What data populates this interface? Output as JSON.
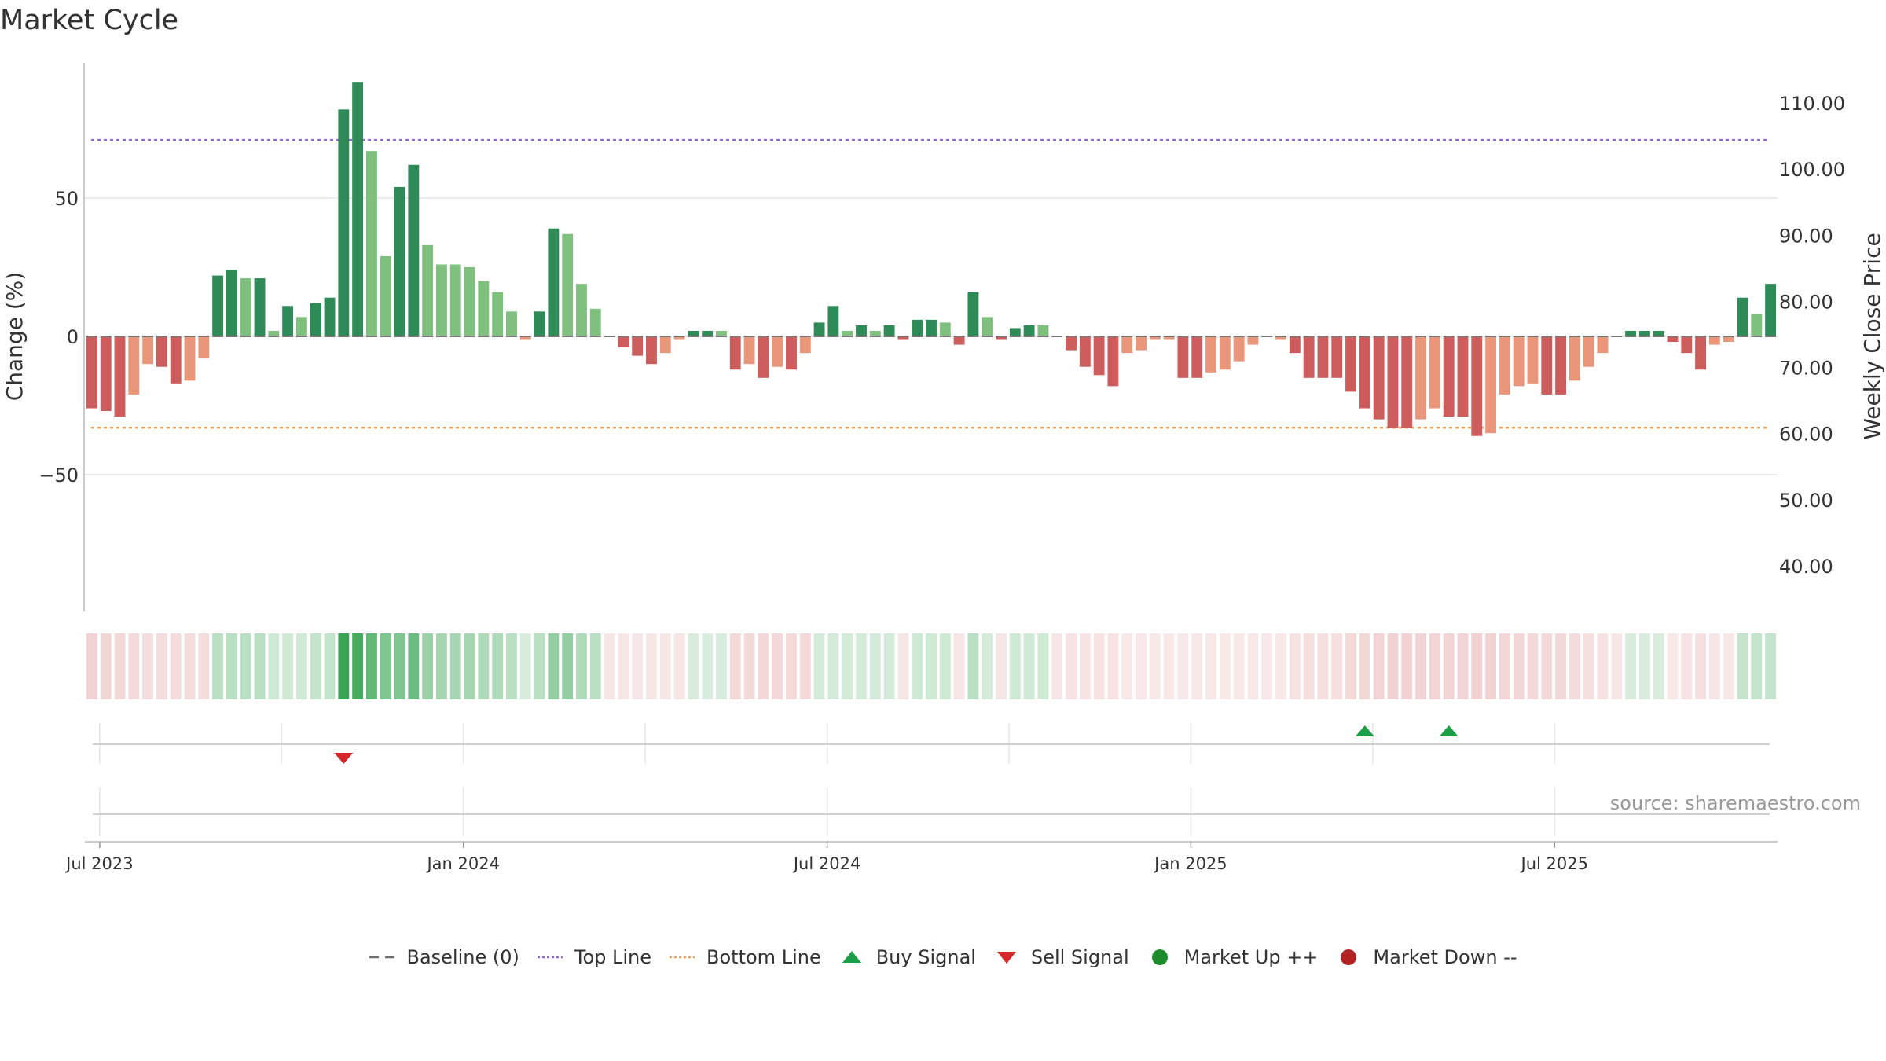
{
  "title": "Market Cycle",
  "source_text": "source: sharemaestro.com",
  "legend": [
    {
      "label": "Baseline (0)",
      "symbol": "dash",
      "color": "#707070"
    },
    {
      "label": "Top Line",
      "symbol": "dot-line",
      "color": "#9467d3"
    },
    {
      "label": "Bottom Line",
      "symbol": "dot-line",
      "color": "#f2a05a"
    },
    {
      "label": "Buy Signal",
      "symbol": "triangle-up",
      "color": "#1a9e46"
    },
    {
      "label": "Sell Signal",
      "symbol": "triangle-down",
      "color": "#d62728"
    },
    {
      "label": "Market Up ++",
      "symbol": "circle",
      "color": "#1e8c2c"
    },
    {
      "label": "Market Down --",
      "symbol": "circle",
      "color": "#b22222"
    }
  ],
  "colors": {
    "up_strong": "#2e8b57",
    "up_weak": "#7fc07f",
    "down_strong": "#cd5c5c",
    "down_weak": "#e9967a",
    "heat_up": "#3aa655",
    "heat_down": "#d98080",
    "buy": "#1a9e46",
    "sell": "#d62728",
    "top_line": "#9467d3",
    "bottom_line": "#f2a05a",
    "grid": "#e5e5e5"
  },
  "chart_data": {
    "type": "bar",
    "title": "Market Cycle",
    "ylabel": "Change (%)",
    "y2label": "Weekly Close Price",
    "ylim": [
      -100,
      100
    ],
    "yticks": [
      50,
      0,
      -50
    ],
    "ytick_labels": [
      "50",
      "0",
      "−50"
    ],
    "y2ticks": [
      110,
      100,
      90,
      80,
      70,
      60,
      50,
      40
    ],
    "y2tick_labels": [
      "110.00",
      "100.00",
      "90.00",
      "80.00",
      "70.00",
      "60.00",
      "50.00",
      "40.00"
    ],
    "xticks": [
      "Jul 2023",
      "Jan 2024",
      "Jul 2024",
      "Jan 2025",
      "Jul 2025"
    ],
    "top_line": 71,
    "bottom_line": -33,
    "bars": [
      {
        "v": -26,
        "s": "s"
      },
      {
        "v": -27,
        "s": "s"
      },
      {
        "v": -29,
        "s": "s"
      },
      {
        "v": -21,
        "s": "w"
      },
      {
        "v": -10,
        "s": "w"
      },
      {
        "v": -11,
        "s": "s"
      },
      {
        "v": -17,
        "s": "s"
      },
      {
        "v": -16,
        "s": "w"
      },
      {
        "v": -8,
        "s": "w"
      },
      {
        "v": 22,
        "s": "s"
      },
      {
        "v": 24,
        "s": "s"
      },
      {
        "v": 21,
        "s": "w"
      },
      {
        "v": 21,
        "s": "s"
      },
      {
        "v": 2,
        "s": "w"
      },
      {
        "v": 11,
        "s": "s"
      },
      {
        "v": 7,
        "s": "w"
      },
      {
        "v": 12,
        "s": "s"
      },
      {
        "v": 14,
        "s": "s"
      },
      {
        "v": 82,
        "s": "s"
      },
      {
        "v": 92,
        "s": "s"
      },
      {
        "v": 67,
        "s": "w"
      },
      {
        "v": 29,
        "s": "w"
      },
      {
        "v": 54,
        "s": "s"
      },
      {
        "v": 62,
        "s": "s"
      },
      {
        "v": 33,
        "s": "w"
      },
      {
        "v": 26,
        "s": "w"
      },
      {
        "v": 26,
        "s": "w"
      },
      {
        "v": 25,
        "s": "w"
      },
      {
        "v": 20,
        "s": "w"
      },
      {
        "v": 16,
        "s": "w"
      },
      {
        "v": 9,
        "s": "w"
      },
      {
        "v": -1,
        "s": "w"
      },
      {
        "v": 9,
        "s": "s"
      },
      {
        "v": 39,
        "s": "s"
      },
      {
        "v": 37,
        "s": "w"
      },
      {
        "v": 19,
        "s": "w"
      },
      {
        "v": 10,
        "s": "w"
      },
      {
        "v": 0,
        "s": "s"
      },
      {
        "v": -4,
        "s": "s"
      },
      {
        "v": -7,
        "s": "s"
      },
      {
        "v": -10,
        "s": "s"
      },
      {
        "v": -6,
        "s": "w"
      },
      {
        "v": -1,
        "s": "w"
      },
      {
        "v": 2,
        "s": "s"
      },
      {
        "v": 2,
        "s": "s"
      },
      {
        "v": 2,
        "s": "w"
      },
      {
        "v": -12,
        "s": "s"
      },
      {
        "v": -10,
        "s": "w"
      },
      {
        "v": -15,
        "s": "s"
      },
      {
        "v": -11,
        "s": "w"
      },
      {
        "v": -12,
        "s": "s"
      },
      {
        "v": -6,
        "s": "w"
      },
      {
        "v": 5,
        "s": "s"
      },
      {
        "v": 11,
        "s": "s"
      },
      {
        "v": 2,
        "s": "w"
      },
      {
        "v": 4,
        "s": "s"
      },
      {
        "v": 2,
        "s": "w"
      },
      {
        "v": 4,
        "s": "s"
      },
      {
        "v": -1,
        "s": "s"
      },
      {
        "v": 6,
        "s": "s"
      },
      {
        "v": 6,
        "s": "s"
      },
      {
        "v": 5,
        "s": "w"
      },
      {
        "v": -3,
        "s": "s"
      },
      {
        "v": 16,
        "s": "s"
      },
      {
        "v": 7,
        "s": "w"
      },
      {
        "v": -1,
        "s": "s"
      },
      {
        "v": 3,
        "s": "s"
      },
      {
        "v": 4,
        "s": "s"
      },
      {
        "v": 4,
        "s": "w"
      },
      {
        "v": 0,
        "s": "w"
      },
      {
        "v": -5,
        "s": "s"
      },
      {
        "v": -11,
        "s": "s"
      },
      {
        "v": -14,
        "s": "s"
      },
      {
        "v": -18,
        "s": "s"
      },
      {
        "v": -6,
        "s": "w"
      },
      {
        "v": -5,
        "s": "w"
      },
      {
        "v": -1,
        "s": "w"
      },
      {
        "v": -1,
        "s": "w"
      },
      {
        "v": -15,
        "s": "s"
      },
      {
        "v": -15,
        "s": "s"
      },
      {
        "v": -13,
        "s": "w"
      },
      {
        "v": -12,
        "s": "w"
      },
      {
        "v": -9,
        "s": "w"
      },
      {
        "v": -3,
        "s": "w"
      },
      {
        "v": 0,
        "s": "w"
      },
      {
        "v": -1,
        "s": "w"
      },
      {
        "v": -6,
        "s": "s"
      },
      {
        "v": -15,
        "s": "s"
      },
      {
        "v": -15,
        "s": "s"
      },
      {
        "v": -15,
        "s": "s"
      },
      {
        "v": -20,
        "s": "s"
      },
      {
        "v": -26,
        "s": "s"
      },
      {
        "v": -30,
        "s": "s"
      },
      {
        "v": -33,
        "s": "s"
      },
      {
        "v": -33,
        "s": "s"
      },
      {
        "v": -30,
        "s": "w"
      },
      {
        "v": -26,
        "s": "w"
      },
      {
        "v": -29,
        "s": "s"
      },
      {
        "v": -29,
        "s": "s"
      },
      {
        "v": -36,
        "s": "s"
      },
      {
        "v": -35,
        "s": "w"
      },
      {
        "v": -21,
        "s": "w"
      },
      {
        "v": -18,
        "s": "w"
      },
      {
        "v": -17,
        "s": "w"
      },
      {
        "v": -21,
        "s": "s"
      },
      {
        "v": -21,
        "s": "s"
      },
      {
        "v": -16,
        "s": "w"
      },
      {
        "v": -11,
        "s": "w"
      },
      {
        "v": -6,
        "s": "w"
      },
      {
        "v": 0,
        "s": "w"
      },
      {
        "v": 2,
        "s": "s"
      },
      {
        "v": 2,
        "s": "s"
      },
      {
        "v": 2,
        "s": "s"
      },
      {
        "v": -2,
        "s": "s"
      },
      {
        "v": -6,
        "s": "s"
      },
      {
        "v": -12,
        "s": "s"
      },
      {
        "v": -3,
        "s": "w"
      },
      {
        "v": -2,
        "s": "w"
      },
      {
        "v": 14,
        "s": "s"
      },
      {
        "v": 8,
        "s": "w"
      },
      {
        "v": 19,
        "s": "s"
      }
    ],
    "heat": [
      -0.35,
      -0.33,
      -0.31,
      -0.29,
      -0.27,
      -0.27,
      -0.27,
      -0.27,
      -0.27,
      0.35,
      0.35,
      0.35,
      0.35,
      0.25,
      0.25,
      0.25,
      0.3,
      0.3,
      1.0,
      0.95,
      0.8,
      0.65,
      0.65,
      0.75,
      0.5,
      0.45,
      0.45,
      0.45,
      0.4,
      0.4,
      0.35,
      0.2,
      0.35,
      0.55,
      0.55,
      0.4,
      0.35,
      -0.2,
      -0.2,
      -0.2,
      -0.2,
      -0.2,
      -0.2,
      0.2,
      0.2,
      0.2,
      -0.3,
      -0.3,
      -0.3,
      -0.3,
      -0.3,
      -0.3,
      0.22,
      0.22,
      0.22,
      0.22,
      0.22,
      0.22,
      -0.2,
      0.25,
      0.25,
      0.25,
      -0.2,
      0.35,
      0.22,
      -0.2,
      0.25,
      0.25,
      0.25,
      -0.2,
      -0.22,
      -0.22,
      -0.22,
      -0.22,
      -0.18,
      -0.18,
      -0.18,
      -0.18,
      -0.18,
      -0.18,
      -0.18,
      -0.18,
      -0.18,
      -0.18,
      -0.18,
      -0.18,
      -0.22,
      -0.25,
      -0.25,
      -0.25,
      -0.3,
      -0.32,
      -0.34,
      -0.36,
      -0.36,
      -0.34,
      -0.34,
      -0.34,
      -0.34,
      -0.36,
      -0.36,
      -0.32,
      -0.32,
      -0.3,
      -0.3,
      -0.3,
      -0.28,
      -0.25,
      -0.22,
      -0.2,
      0.2,
      0.2,
      0.2,
      -0.18,
      -0.22,
      -0.25,
      -0.2,
      -0.18,
      0.3,
      0.3,
      0.3
    ],
    "buy_signals": [
      91,
      97
    ],
    "sell_signals": [
      18
    ]
  }
}
